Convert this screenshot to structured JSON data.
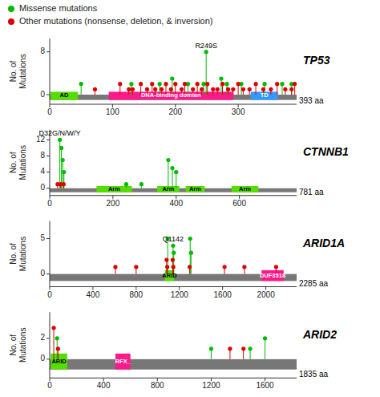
{
  "chart_data": [
    {
      "type": "lollipop",
      "title": "TP53",
      "y_label": "No. of\nMutations",
      "xlim": [
        0,
        393
      ],
      "xticks": [
        0,
        100,
        200,
        300
      ],
      "ylim": [
        -1.8,
        10.5
      ],
      "yticks": [
        0,
        8
      ],
      "length_label": "393 aa",
      "domains": [
        {
          "name": "AD",
          "start": 1,
          "end": 45,
          "color": "#55dd00",
          "text_color": "black"
        },
        {
          "name": "DNA-binding domian",
          "start": 94,
          "end": 292,
          "color": "#ff1a8c",
          "text_color": "white"
        },
        {
          "name": "TD",
          "start": 320,
          "end": 363,
          "color": "#3399ff",
          "text_color": "white"
        }
      ],
      "series": [
        {
          "name": "Missense mutations",
          "color": "#00bb00",
          "x": [
            50,
            130,
            175,
            195,
            220,
            245,
            249,
            273,
            282,
            305,
            342,
            370,
            385
          ],
          "values": [
            2,
            2,
            2,
            3,
            2,
            2,
            8,
            3,
            2,
            2,
            2,
            2,
            2
          ]
        },
        {
          "name": "Other mutations (nonsense, deletion, & inversion)",
          "color": "#dd0000",
          "x": [
            72,
            112,
            126,
            132,
            145,
            155,
            163,
            168,
            178,
            185,
            193,
            200,
            210,
            215,
            228,
            235,
            242,
            251,
            260,
            267,
            275,
            284,
            292,
            300,
            308,
            318,
            328,
            340,
            352,
            362,
            375,
            385,
            390
          ],
          "values": [
            1,
            2,
            1,
            1,
            2,
            1,
            2,
            1,
            1,
            2,
            1,
            2,
            1,
            2,
            1,
            2,
            1,
            2,
            1,
            1,
            2,
            1,
            1,
            2,
            1,
            1,
            2,
            1,
            1,
            2,
            1,
            1,
            2
          ]
        }
      ],
      "annotations": [
        {
          "text": "R249S",
          "x": 249,
          "y": 8
        }
      ]
    },
    {
      "type": "lollipop",
      "title": "CTNNB1",
      "y_label": "No. of\nMutations",
      "xlim": [
        0,
        781
      ],
      "xticks": [
        0,
        200,
        400,
        600
      ],
      "ylim": [
        -1.8,
        14.5
      ],
      "yticks": [
        0,
        4,
        8,
        12
      ],
      "length_label": "781 aa",
      "domains": [
        {
          "name": "Arm",
          "start": 148,
          "end": 260,
          "color": "#55dd00",
          "text_color": "black"
        },
        {
          "name": "Arm",
          "start": 340,
          "end": 410,
          "color": "#55dd00",
          "text_color": "black"
        },
        {
          "name": "Arm",
          "start": 430,
          "end": 490,
          "color": "#55dd00",
          "text_color": "black"
        },
        {
          "name": "Arm",
          "start": 575,
          "end": 660,
          "color": "#55dd00",
          "text_color": "black"
        }
      ],
      "series": [
        {
          "color": "#00bb00",
          "x": [
            32,
            37,
            41,
            45,
            375,
            388,
            400,
            242,
            290
          ],
          "values": [
            12,
            10,
            7,
            4,
            7,
            5,
            4,
            1,
            1
          ]
        },
        {
          "color": "#dd0000",
          "x": [
            25,
            34,
            44
          ],
          "values": [
            1,
            1,
            1
          ]
        }
      ],
      "annotations": [
        {
          "text": "D32G/N/W/Y",
          "x": 32,
          "y": 12
        }
      ]
    },
    {
      "type": "lollipop",
      "title": "ARID1A",
      "y_label": "No. of\nMutations",
      "xlim": [
        0,
        2285
      ],
      "xticks": [
        0,
        400,
        800,
        1200,
        1600,
        2000
      ],
      "ylim": [
        -1.8,
        7.5
      ],
      "yticks": [
        0,
        5
      ],
      "length_label": "2285 aa",
      "domains": [
        {
          "name": "ARID",
          "start": 1066,
          "end": 1152,
          "color": "#55dd00",
          "text_color": "black"
        },
        {
          "name": "DUF3518",
          "start": 1960,
          "end": 2165,
          "color": "#ff1a8c",
          "text_color": "white"
        }
      ],
      "series": [
        {
          "color": "#00bb00",
          "x": [
            1092,
            1142,
            1148,
            1300,
            1308
          ],
          "values": [
            5,
            4,
            3,
            5,
            3
          ]
        },
        {
          "color": "#dd0000",
          "x": [
            608,
            800,
            1082,
            1088,
            1138,
            1144,
            1295,
            1618,
            1802,
            2095
          ],
          "values": [
            1,
            1,
            2,
            1,
            2,
            1,
            1,
            1,
            1,
            1
          ]
        }
      ],
      "annotations": [
        {
          "text": "Q1142",
          "x": 1142,
          "y": 4
        }
      ]
    },
    {
      "type": "lollipop",
      "title": "ARID2",
      "y_label": "No. of\nMutations",
      "xlim": [
        0,
        1835
      ],
      "xticks": [
        0,
        400,
        800,
        1200,
        1600
      ],
      "ylim": [
        -1.8,
        4.5
      ],
      "yticks": [
        0,
        2
      ],
      "length_label": "1835 aa",
      "domains": [
        {
          "name": "ARID",
          "start": 8,
          "end": 130,
          "color": "#55dd00",
          "text_color": "black"
        },
        {
          "name": "RFX_",
          "start": 488,
          "end": 600,
          "color": "#ff1a8c",
          "text_color": "white"
        }
      ],
      "series": [
        {
          "color": "#00bb00",
          "x": [
            55,
            1200,
            1490,
            1600
          ],
          "values": [
            2,
            1,
            1,
            2
          ]
        },
        {
          "color": "#dd0000",
          "x": [
            30,
            62,
            1340,
            1440
          ],
          "values": [
            3,
            1,
            1,
            1
          ]
        }
      ],
      "annotations": []
    }
  ]
}
